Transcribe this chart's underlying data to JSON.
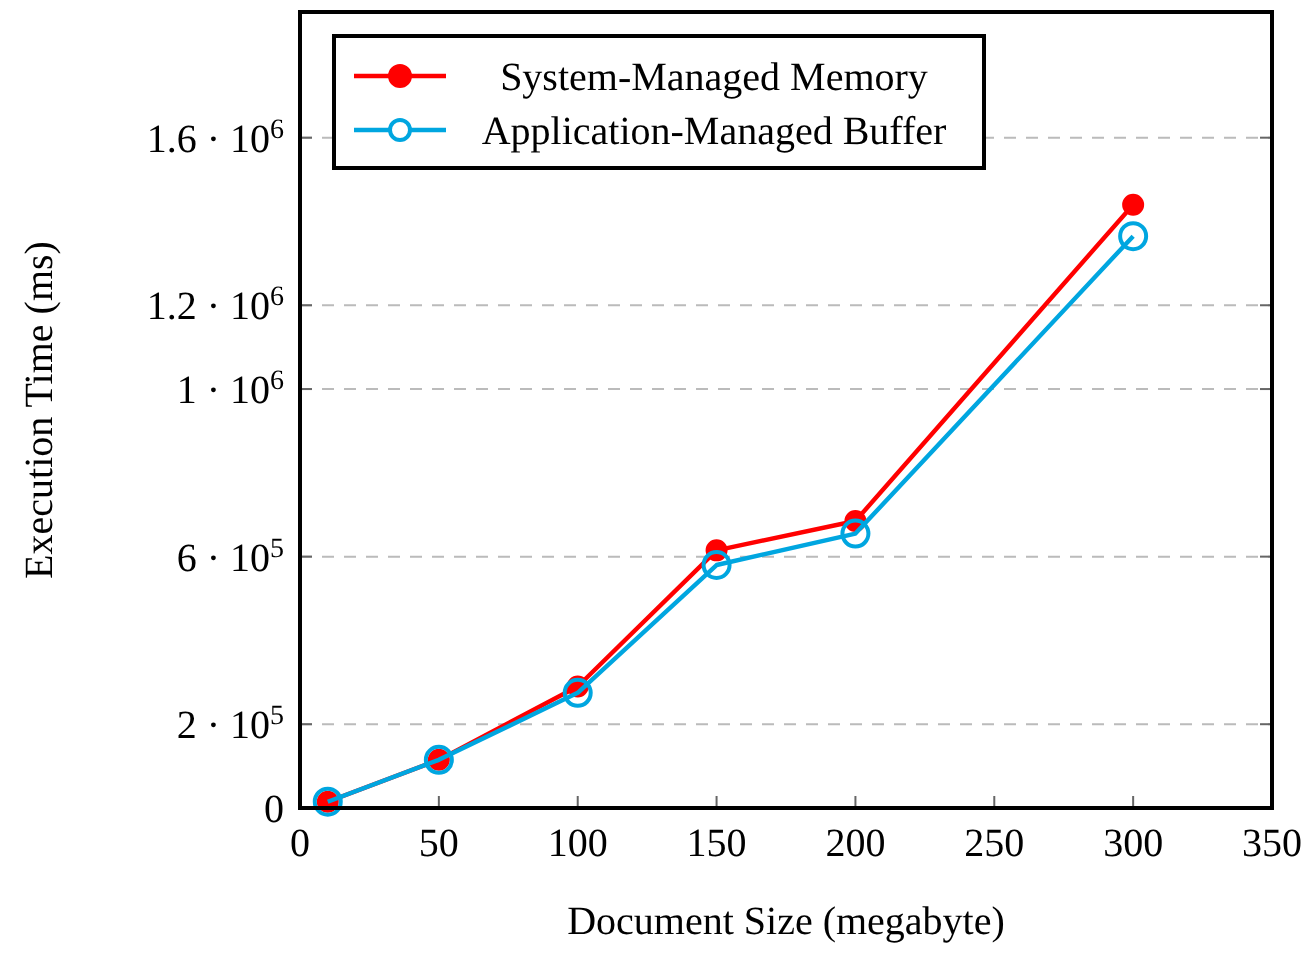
{
  "chart_data": {
    "type": "line",
    "xlabel": "Document Size (megabyte)",
    "ylabel": "Execution Time (ms)",
    "x": [
      10,
      50,
      100,
      150,
      200,
      300
    ],
    "series": [
      {
        "name": "System-Managed Memory",
        "color": "#ff0000",
        "values": [
          15000,
          115000,
          290000,
          615000,
          685000,
          1440000
        ]
      },
      {
        "name": "Application-Managed Buffer",
        "color": "#00a6e0",
        "values": [
          15000,
          115000,
          275000,
          580000,
          655000,
          1365000
        ]
      }
    ],
    "xlim": [
      0,
      350
    ],
    "xticks": [
      0,
      50,
      100,
      150,
      200,
      250,
      300,
      350
    ],
    "ylim": [
      0,
      1900000
    ],
    "yticks": [
      0,
      {
        "value": 200000,
        "label": "2 · 10$^{5}$"
      },
      {
        "value": 600000,
        "label": "6 · 10$^{5}$"
      },
      {
        "value": 1000000,
        "label": "1 · 10$^{6}$"
      },
      {
        "value": 1200000,
        "label": "1.2 · 10$^{6}$"
      },
      {
        "value": 1600000,
        "label": "1.6 · 10$^{6}$"
      }
    ],
    "grid": "y",
    "legend": "top left",
    "marker": "circle",
    "line_style": "solid"
  }
}
